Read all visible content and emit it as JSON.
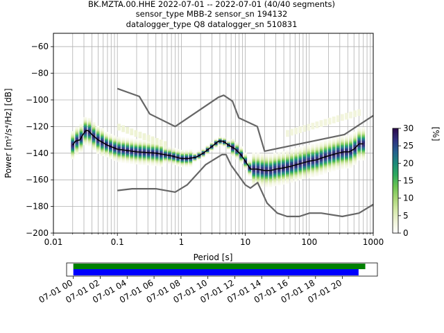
{
  "title_lines": [
    "BK.MZTA.00.HHE   2022-07-01 -- 2022-07-01  (40/40 segments)",
    "sensor_type MBB-2 sensor_sn 194132",
    "datalogger_type Q8 datalogger_sn 510831"
  ],
  "chart_data": {
    "type": "heatmap",
    "xlabel": "Period [s]",
    "ylabel": "Power [m²/s⁴/Hz] [dB]",
    "xscale": "log",
    "xlim": [
      0.01,
      1000
    ],
    "ylim": [
      -200,
      -50
    ],
    "x_ticks": [
      {
        "value": 0.01,
        "label": "0.01"
      },
      {
        "value": 0.1,
        "label": "0.1"
      },
      {
        "value": 1,
        "label": "1"
      },
      {
        "value": 10,
        "label": "10"
      },
      {
        "value": 100,
        "label": "100"
      },
      {
        "value": 1000,
        "label": "1000"
      }
    ],
    "y_ticks": [
      {
        "value": -60,
        "label": "−60"
      },
      {
        "value": -80,
        "label": "−80"
      },
      {
        "value": -100,
        "label": "−100"
      },
      {
        "value": -120,
        "label": "−120"
      },
      {
        "value": -140,
        "label": "−140"
      },
      {
        "value": -160,
        "label": "−160"
      },
      {
        "value": -180,
        "label": "−180"
      },
      {
        "value": -200,
        "label": "−200"
      }
    ],
    "grid": true,
    "noise_model_high": {
      "x": [
        0.1,
        0.22,
        0.32,
        0.8,
        3.8,
        4.6,
        6.3,
        7.9,
        15.4,
        20,
        354.8,
        1000
      ],
      "y": [
        -91.5,
        -97.4,
        -110.5,
        -120,
        -98,
        -96.5,
        -101,
        -113.5,
        -120,
        -138.5,
        -126,
        -111.8
      ]
    },
    "noise_model_low": {
      "x": [
        0.1,
        0.17,
        0.4,
        0.8,
        1.24,
        2.4,
        4.3,
        5,
        6,
        10,
        12,
        15.6,
        21.9,
        31.6,
        45,
        70,
        101,
        154,
        328,
        600,
        1000
      ],
      "y": [
        -168,
        -166.7,
        -166.7,
        -169.2,
        -163.7,
        -148.6,
        -141.1,
        -141.1,
        -149,
        -163.8,
        -166.2,
        -162.1,
        -177.5,
        -185,
        -187.5,
        -187.5,
        -185,
        -185,
        -187.5,
        -185,
        -178.5
      ]
    },
    "mode": {
      "x": [
        0.02,
        0.022,
        0.026,
        0.029,
        0.032,
        0.035,
        0.04,
        0.05,
        0.07,
        0.1,
        0.2,
        0.4,
        0.7,
        1,
        1.3,
        1.7,
        2.2,
        3,
        3.8,
        4.5,
        5.5,
        7,
        8.5,
        10,
        12,
        15,
        20,
        25,
        30,
        40,
        50,
        70,
        100,
        130,
        170,
        200,
        280,
        350,
        420,
        500,
        600,
        700
      ],
      "y": [
        -134,
        -131,
        -130,
        -126,
        -123,
        -123,
        -126,
        -130,
        -134,
        -137,
        -139,
        -140,
        -142,
        -144,
        -144,
        -143,
        -140,
        -135,
        -131,
        -131,
        -134,
        -137,
        -141,
        -146,
        -152,
        -152,
        -153,
        -153,
        -152,
        -151,
        -150,
        -148,
        -146,
        -145,
        -143,
        -142,
        -140,
        -139,
        -139,
        -137,
        -133,
        -133
      ]
    },
    "colorbar": {
      "label": "[%]",
      "range": [
        0,
        30
      ],
      "ticks": [
        0,
        5,
        10,
        15,
        20,
        25,
        30
      ],
      "tick_labels": [
        "0",
        "5",
        "10",
        "15",
        "20",
        "25",
        "30"
      ],
      "colormap": [
        "#ffffff",
        "#f0f4d8",
        "#d4e9a8",
        "#a8d676",
        "#6cc452",
        "#2eaa5e",
        "#1c8a7a",
        "#245f8f",
        "#30307f",
        "#2c0a4a"
      ]
    },
    "colors": {
      "noise_models": "#666666",
      "mode_line": "#000000"
    }
  },
  "timeline": {
    "x_tick_labels": [
      "07-01 00",
      "07-01 02",
      "07-01 04",
      "07-01 06",
      "07-01 08",
      "07-01 10",
      "07-01 12",
      "07-01 14",
      "07-01 16",
      "07-01 18",
      "07-01 20"
    ],
    "hours_shown": [
      0,
      2,
      4,
      6,
      8,
      10,
      12,
      14,
      16,
      18,
      20
    ],
    "range_hours": [
      -0.5,
      22.6
    ],
    "data_coverage_hours": [
      0,
      21.7
    ],
    "psd_coverage_hours": [
      0,
      21.2
    ],
    "colors": {
      "data": "#008000",
      "psd": "#0000ff"
    }
  }
}
